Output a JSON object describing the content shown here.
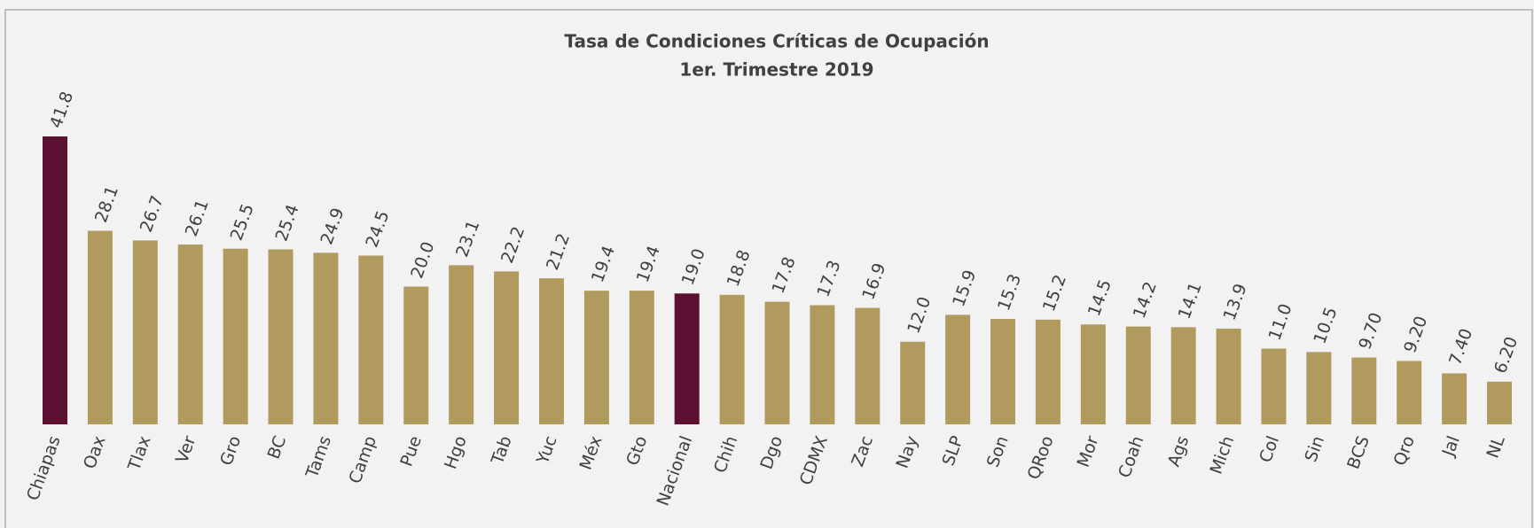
{
  "chart_data": {
    "type": "bar",
    "title": "Tasa de Condiciones Críticas de Ocupación",
    "subtitle": "1er. Trimestre 2019",
    "categories": [
      "Chiapas",
      "Oax",
      "Tlax",
      "Ver",
      "Gro",
      "BC",
      "Tams",
      "Camp",
      "Pue",
      "Hgo",
      "Tab",
      "Yuc",
      "Méx",
      "Gto",
      "Nacional",
      "Chih",
      "Dgo",
      "CDMX",
      "Zac",
      "Nay",
      "SLP",
      "Son",
      "QRoo",
      "Mor",
      "Coah",
      "Ags",
      "Mich",
      "Col",
      "Sin",
      "BCS",
      "Qro",
      "Jal",
      "NL"
    ],
    "values": [
      41.8,
      28.1,
      26.7,
      26.1,
      25.5,
      25.4,
      24.9,
      24.5,
      20.0,
      23.1,
      22.2,
      21.2,
      19.4,
      19.4,
      19.0,
      18.8,
      17.8,
      17.3,
      16.9,
      12.0,
      15.9,
      15.3,
      15.2,
      14.5,
      14.2,
      14.1,
      13.9,
      11.0,
      10.5,
      9.7,
      9.2,
      7.4,
      6.2
    ],
    "value_labels": [
      "41.8",
      "28.1",
      "26.7",
      "26.1",
      "25.5",
      "25.4",
      "24.9",
      "24.5",
      "20.0",
      "23.1",
      "22.2",
      "21.2",
      "19.4",
      "19.4",
      "19.0",
      "18.8",
      "17.8",
      "17.3",
      "16.9",
      "12.0",
      "15.9",
      "15.3",
      "15.2",
      "14.5",
      "14.2",
      "14.1",
      "13.9",
      "11.0",
      "10.5",
      "9.70",
      "9.20",
      "7.40",
      "6.20"
    ],
    "colors": [
      "#5c1032",
      "#b09a5e",
      "#b09a5e",
      "#b09a5e",
      "#b09a5e",
      "#b09a5e",
      "#b09a5e",
      "#b09a5e",
      "#b09a5e",
      "#b09a5e",
      "#b09a5e",
      "#b09a5e",
      "#b09a5e",
      "#b09a5e",
      "#5c1032",
      "#b09a5e",
      "#b09a5e",
      "#b09a5e",
      "#b09a5e",
      "#b09a5e",
      "#b09a5e",
      "#b09a5e",
      "#b09a5e",
      "#b09a5e",
      "#b09a5e",
      "#b09a5e",
      "#b09a5e",
      "#b09a5e",
      "#b09a5e",
      "#b09a5e",
      "#b09a5e",
      "#b09a5e",
      "#b09a5e"
    ]
  }
}
